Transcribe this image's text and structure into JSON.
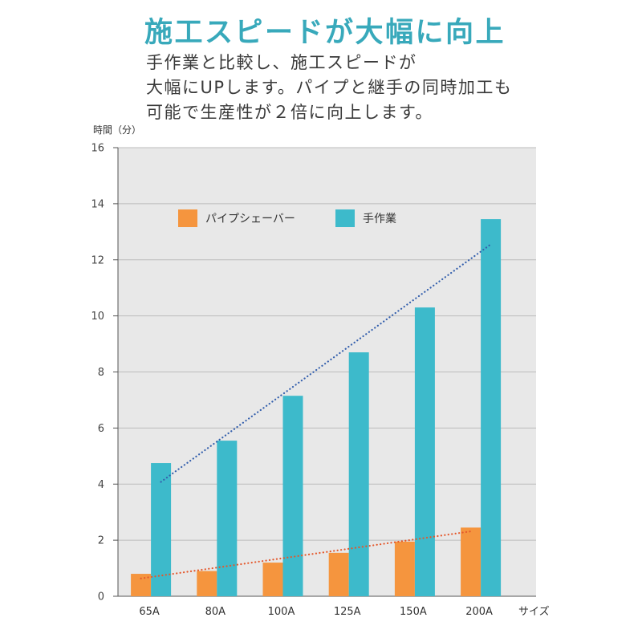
{
  "heading": "施工スピードが大幅に向上",
  "description": [
    "手作業と比較し、施工スピードが",
    "大幅にUPします。パイプと継手の同時加工も",
    "可能で生産性が２倍に向上します。"
  ],
  "colors": {
    "heading": "#38a9bb",
    "plot_background": "#e8e8e8"
  },
  "chart_data": {
    "type": "bar",
    "ylabel": "時間（分）",
    "xlabel": "サイズ",
    "categories": [
      "65A",
      "80A",
      "100A",
      "125A",
      "150A",
      "200A"
    ],
    "series": [
      {
        "name": "パイプシェーバー",
        "values": [
          0.8,
          0.9,
          1.2,
          1.55,
          1.95,
          2.45
        ],
        "color": "#f5953e",
        "trendline": true,
        "trendline_color": "#e4582c"
      },
      {
        "name": "手作業",
        "values": [
          4.75,
          5.55,
          7.15,
          8.7,
          10.3,
          13.45
        ],
        "color": "#3dbacb",
        "trendline": true,
        "trendline_color": "#3560ad"
      }
    ],
    "ylim": [
      0,
      16
    ],
    "yticks": [
      0,
      2,
      4,
      6,
      8,
      10,
      12,
      14,
      16
    ],
    "grid": true,
    "legend": "top-left"
  }
}
